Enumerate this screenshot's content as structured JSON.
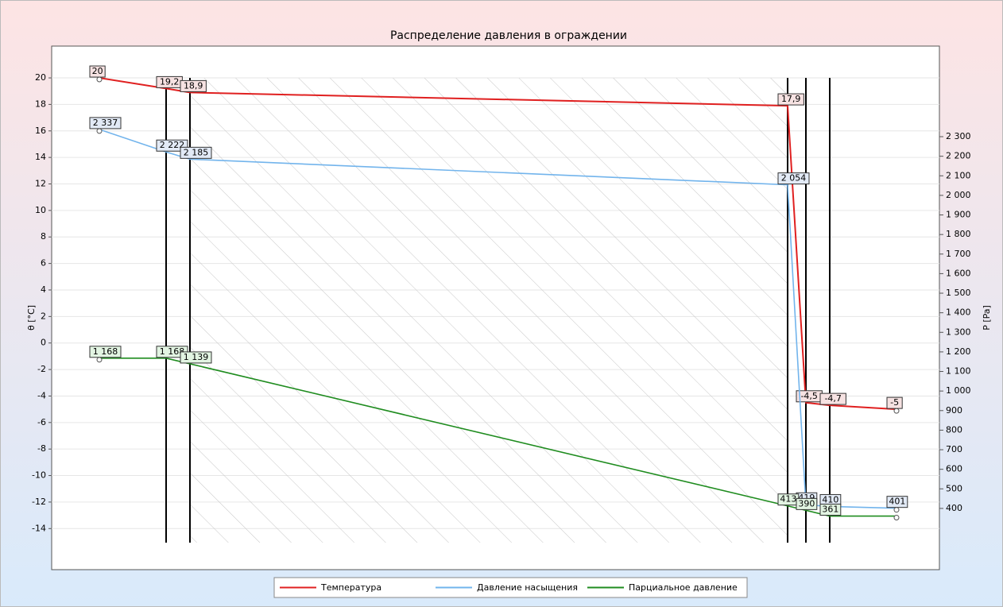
{
  "chart_data": {
    "type": "line",
    "title": "Распределение давления в ограждении",
    "y_label": "θ [°C]",
    "y2_label": "P [Pa]",
    "x": [
      0,
      84,
      114,
      866,
      889,
      919,
      1003
    ],
    "xlim": [
      -60,
      1057
    ],
    "ylim": [
      -17.1,
      22.4
    ],
    "yticks": [
      20,
      18,
      16,
      14,
      12,
      10,
      8,
      6,
      4,
      2,
      0,
      -2,
      -4,
      -6,
      -8,
      -10,
      -12,
      -14
    ],
    "y2lim": [
      87,
      2763
    ],
    "y2ticks": [
      {
        "value": 400,
        "label": "400"
      },
      {
        "value": 500,
        "label": "500"
      },
      {
        "value": 600,
        "label": "600"
      },
      {
        "value": 700,
        "label": "700"
      },
      {
        "value": 800,
        "label": "800"
      },
      {
        "value": 900,
        "label": "900"
      },
      {
        "value": 1000,
        "label": "1 000"
      },
      {
        "value": 1100,
        "label": "1 100"
      },
      {
        "value": 1200,
        "label": "1 200"
      },
      {
        "value": 1300,
        "label": "1 300"
      },
      {
        "value": 1400,
        "label": "1 400"
      },
      {
        "value": 1500,
        "label": "1 500"
      },
      {
        "value": 1600,
        "label": "1 600"
      },
      {
        "value": 1700,
        "label": "1 700"
      },
      {
        "value": 1800,
        "label": "1 800"
      },
      {
        "value": 1900,
        "label": "1 900"
      },
      {
        "value": 2000,
        "label": "2 000"
      },
      {
        "value": 2100,
        "label": "2 100"
      },
      {
        "value": 2200,
        "label": "2 200"
      },
      {
        "value": 2300,
        "label": "2 300"
      }
    ],
    "grid": true,
    "legend": "bottom",
    "series": [
      {
        "name": "Температура",
        "color": "#e02020",
        "label_fill": "#f6e2e2",
        "values": [
          20,
          19.2,
          18.9,
          17.9,
          -4.5,
          -4.7,
          -5
        ],
        "value_labels": [
          "20",
          "19,2",
          "18,9",
          "17,9",
          "-4,5",
          "-4,7",
          "-5"
        ]
      },
      {
        "name": "Давление насыщения",
        "color": "#72b4ec",
        "label_fill": "#e2eaf6",
        "axis": "y2",
        "values": [
          2337,
          2222,
          2185,
          2054,
          419,
          410,
          401
        ],
        "value_labels": [
          "2 337",
          "2 222",
          "2 185",
          "2 054",
          "419",
          "410",
          "401"
        ]
      },
      {
        "name": "Парциальное давление",
        "color": "#1f8c1f",
        "label_fill": "#e2f4e2",
        "axis": "y2",
        "values": [
          1168,
          1168,
          1139,
          413,
          390,
          361,
          361
        ],
        "value_labels": [
          "1 168",
          "1 168",
          "1 139",
          "413",
          "390",
          "361",
          null
        ]
      }
    ]
  }
}
